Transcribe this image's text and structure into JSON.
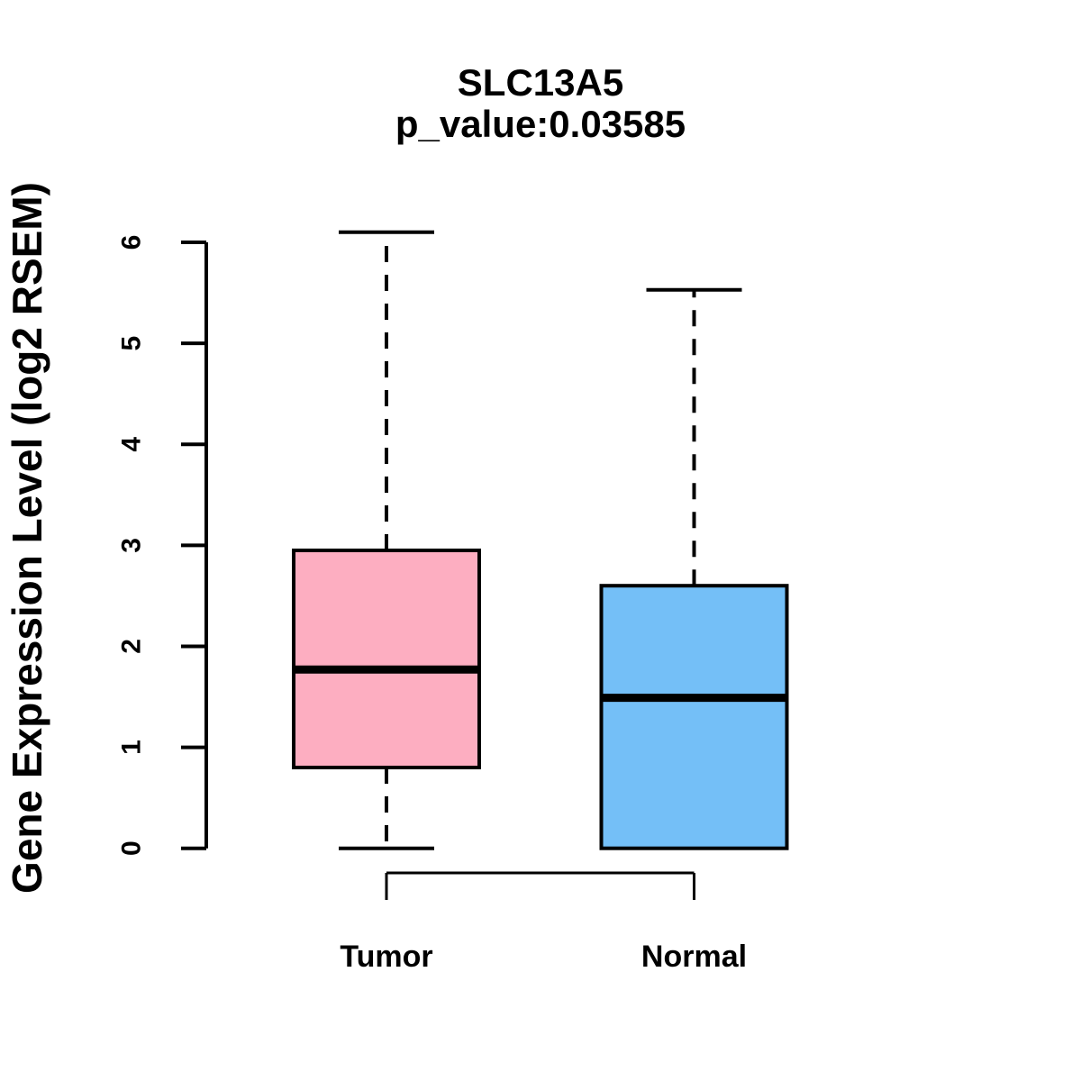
{
  "header": {
    "title": "SLC13A5",
    "subtitle": "p_value:0.03585"
  },
  "y_axis": {
    "label": "Gene Expression Level (log2 RSEM)",
    "tick_labels": [
      "0",
      "1",
      "2",
      "3",
      "4",
      "5",
      "6"
    ]
  },
  "x_axis": {
    "categories": [
      "Tumor",
      "Normal"
    ]
  },
  "colors": {
    "tumor_fill": "#FDAEC1",
    "normal_fill": "#74BFF7",
    "line": "#000000",
    "background": "#FFFFFF"
  },
  "chart_data": {
    "type": "boxplot",
    "title": "SLC13A5",
    "subtitle": "p_value:0.03585",
    "p_value": 0.03585,
    "ylabel": "Gene Expression Level (log2 RSEM)",
    "xlabel": "",
    "ylim": [
      0,
      6
    ],
    "yticks": [
      0,
      1,
      2,
      3,
      4,
      5,
      6
    ],
    "grid": false,
    "legend": "none",
    "categories": [
      "Tumor",
      "Normal"
    ],
    "series": [
      {
        "name": "Tumor",
        "fill": "#FDAEC1",
        "whisker_low": 0,
        "q1": 0.8,
        "median": 1.77,
        "q3": 2.95,
        "whisker_high": 6.1
      },
      {
        "name": "Normal",
        "fill": "#74BFF7",
        "whisker_low": 0,
        "q1": 0,
        "median": 1.49,
        "q3": 2.6,
        "whisker_high": 5.53
      }
    ]
  }
}
